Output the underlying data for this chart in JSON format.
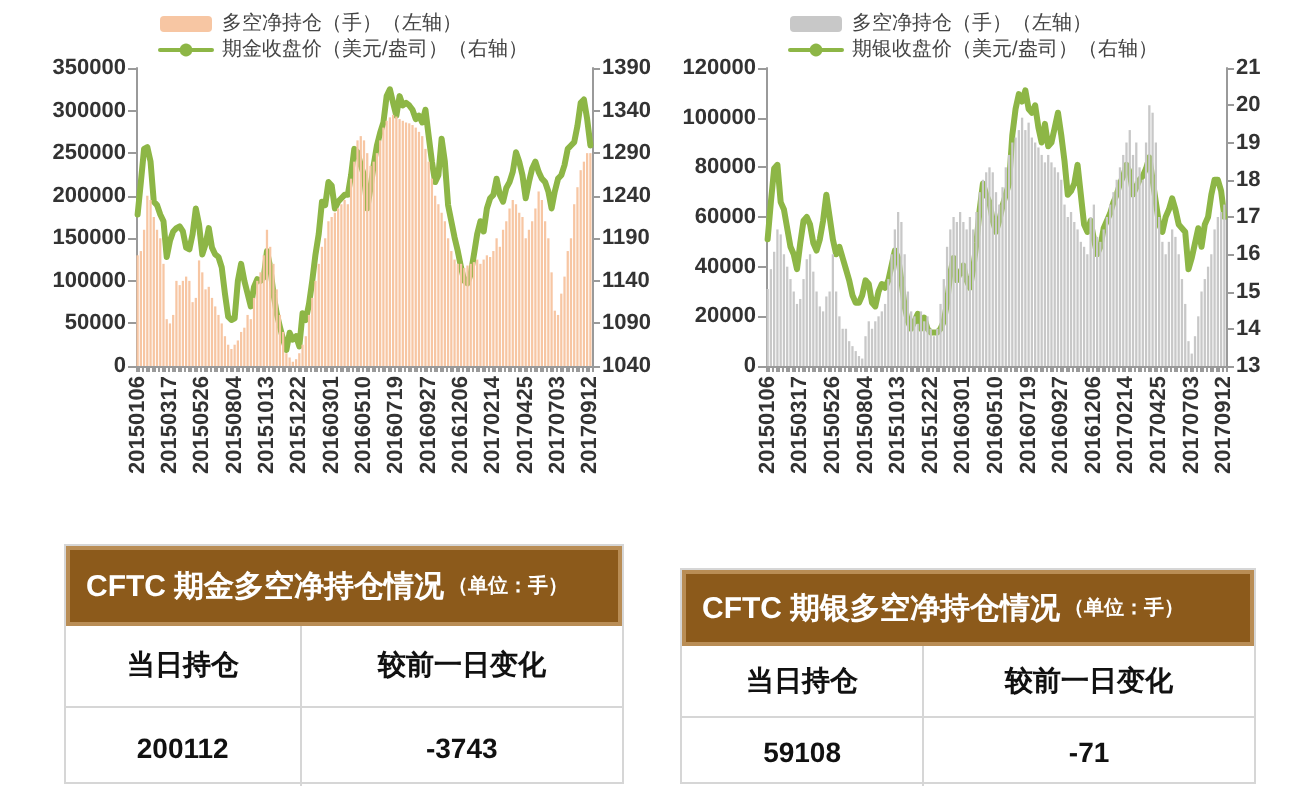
{
  "chart_data": [
    {
      "type": "bar",
      "legend": "top left",
      "categories": [
        "20150106",
        null,
        null,
        null,
        null,
        null,
        null,
        null,
        null,
        null,
        "20150317",
        null,
        null,
        null,
        null,
        null,
        null,
        null,
        null,
        null,
        "20150526",
        null,
        null,
        null,
        null,
        null,
        null,
        null,
        null,
        null,
        "20150804",
        null,
        null,
        null,
        null,
        null,
        null,
        null,
        null,
        null,
        "20151013",
        null,
        null,
        null,
        null,
        null,
        null,
        null,
        null,
        null,
        "20151222",
        null,
        null,
        null,
        null,
        null,
        null,
        null,
        null,
        null,
        "20160301",
        null,
        null,
        null,
        null,
        null,
        null,
        null,
        null,
        null,
        "20160510",
        null,
        null,
        null,
        null,
        null,
        null,
        null,
        null,
        null,
        "20160719",
        null,
        null,
        null,
        null,
        null,
        null,
        null,
        null,
        null,
        "20160927",
        null,
        null,
        null,
        null,
        null,
        null,
        null,
        null,
        null,
        "20161206",
        null,
        null,
        null,
        null,
        null,
        null,
        null,
        null,
        null,
        "20170214",
        null,
        null,
        null,
        null,
        null,
        null,
        null,
        null,
        null,
        "20170425",
        null,
        null,
        null,
        null,
        null,
        null,
        null,
        null,
        null,
        "20170703",
        null,
        null,
        null,
        null,
        null,
        null,
        null,
        null,
        null,
        "20170912"
      ],
      "series": [
        {
          "name": "多空净持仓（手）（左轴）",
          "type": "bar",
          "color": "#f7c6a3",
          "values": [
            130000,
            135000,
            160000,
            200000,
            195000,
            175000,
            160000,
            150000,
            120000,
            55000,
            50000,
            60000,
            100000,
            95000,
            100000,
            105000,
            100000,
            75000,
            80000,
            124000,
            110000,
            90000,
            93000,
            80000,
            70000,
            60000,
            50000,
            35000,
            25000,
            20000,
            25000,
            30000,
            40000,
            45000,
            60000,
            55000,
            80000,
            100000,
            110000,
            130000,
            160000,
            140000,
            120000,
            90000,
            60000,
            40000,
            15000,
            10000,
            5000,
            8000,
            15000,
            25000,
            35000,
            60000,
            80000,
            100000,
            120000,
            140000,
            150000,
            170000,
            175000,
            180000,
            185000,
            190000,
            195000,
            190000,
            220000,
            240000,
            265000,
            270000,
            265000,
            250000,
            235000,
            240000,
            250000,
            265000,
            280000,
            288000,
            292000,
            295000,
            293000,
            290000,
            288000,
            286000,
            285000,
            283000,
            280000,
            275000,
            270000,
            255000,
            240000,
            220000,
            200000,
            190000,
            180000,
            170000,
            150000,
            135000,
            125000,
            120000,
            120000,
            115000,
            118000,
            120000,
            122000,
            125000,
            120000,
            125000,
            130000,
            128000,
            135000,
            150000,
            140000,
            160000,
            170000,
            185000,
            195000,
            190000,
            180000,
            175000,
            150000,
            160000,
            170000,
            185000,
            205000,
            195000,
            170000,
            150000,
            110000,
            65000,
            60000,
            85000,
            105000,
            135000,
            150000,
            190000,
            210000,
            230000,
            240000,
            250000,
            250000
          ]
        },
        {
          "name": "期金收盘价（美元/盎司）（右轴）",
          "type": "line",
          "axis": "y2",
          "color": "#8db646",
          "values": [
            1218,
            1256,
            1295,
            1297,
            1280,
            1233,
            1229,
            1218,
            1210,
            1168,
            1187,
            1198,
            1202,
            1204,
            1198,
            1179,
            1177,
            1195,
            1225,
            1206,
            1171,
            1183,
            1202,
            1179,
            1171,
            1168,
            1156,
            1125,
            1098,
            1094,
            1096,
            1140,
            1160,
            1140,
            1125,
            1110,
            1133,
            1142,
            1140,
            1144,
            1175,
            1156,
            1125,
            1102,
            1086,
            1071,
            1059,
            1079,
            1071,
            1075,
            1063,
            1102,
            1094,
            1113,
            1140,
            1171,
            1195,
            1233,
            1229,
            1256,
            1252,
            1225,
            1233,
            1237,
            1241,
            1241,
            1264,
            1295,
            1291,
            1276,
            1264,
            1225,
            1249,
            1276,
            1299,
            1314,
            1326,
            1357,
            1365,
            1349,
            1334,
            1357,
            1346,
            1349,
            1346,
            1341,
            1330,
            1334,
            1326,
            1341,
            1310,
            1280,
            1256,
            1264,
            1307,
            1280,
            1229,
            1210,
            1191,
            1175,
            1156,
            1140,
            1137,
            1148,
            1171,
            1195,
            1210,
            1198,
            1225,
            1237,
            1241,
            1260,
            1241,
            1233,
            1249,
            1256,
            1268,
            1291,
            1280,
            1264,
            1237,
            1256,
            1272,
            1280,
            1268,
            1260,
            1256,
            1245,
            1225,
            1245,
            1260,
            1264,
            1276,
            1295,
            1299,
            1303,
            1322,
            1349,
            1353,
            1330,
            1299
          ]
        }
      ],
      "ylim": [
        0,
        350000
      ],
      "yticks": [
        0,
        50000,
        100000,
        150000,
        200000,
        250000,
        300000,
        350000
      ],
      "y2lim": [
        1040,
        1390
      ],
      "y2ticks": [
        1040,
        1090,
        1140,
        1190,
        1240,
        1290,
        1340,
        1390
      ]
    },
    {
      "type": "bar",
      "legend": "top left",
      "categories": [
        "20150106",
        null,
        null,
        null,
        null,
        null,
        null,
        null,
        null,
        null,
        "20150317",
        null,
        null,
        null,
        null,
        null,
        null,
        null,
        null,
        null,
        "20150526",
        null,
        null,
        null,
        null,
        null,
        null,
        null,
        null,
        null,
        "20150804",
        null,
        null,
        null,
        null,
        null,
        null,
        null,
        null,
        null,
        "20151013",
        null,
        null,
        null,
        null,
        null,
        null,
        null,
        null,
        null,
        "20151222",
        null,
        null,
        null,
        null,
        null,
        null,
        null,
        null,
        null,
        "20160301",
        null,
        null,
        null,
        null,
        null,
        null,
        null,
        null,
        null,
        "20160510",
        null,
        null,
        null,
        null,
        null,
        null,
        null,
        null,
        null,
        "20160719",
        null,
        null,
        null,
        null,
        null,
        null,
        null,
        null,
        null,
        "20160927",
        null,
        null,
        null,
        null,
        null,
        null,
        null,
        null,
        null,
        "20161206",
        null,
        null,
        null,
        null,
        null,
        null,
        null,
        null,
        null,
        "20170214",
        null,
        null,
        null,
        null,
        null,
        null,
        null,
        null,
        null,
        "20170425",
        null,
        null,
        null,
        null,
        null,
        null,
        null,
        null,
        null,
        "20170703",
        null,
        null,
        null,
        null,
        null,
        null,
        null,
        null,
        null,
        "20170912"
      ],
      "series": [
        {
          "name": "多空净持仓（手）（左轴）",
          "type": "bar",
          "color": "#c8c8c8",
          "values": [
            31000,
            39000,
            46000,
            55000,
            53000,
            45000,
            40000,
            35000,
            30000,
            25000,
            27000,
            35000,
            43000,
            45000,
            38000,
            30000,
            24000,
            22000,
            28000,
            30000,
            45000,
            30000,
            20000,
            15000,
            15000,
            10000,
            8000,
            6000,
            4000,
            3000,
            12000,
            18000,
            15000,
            18000,
            20000,
            22000,
            25000,
            35000,
            45000,
            55000,
            62000,
            58000,
            45000,
            30000,
            22000,
            20000,
            17000,
            22000,
            18000,
            20000,
            15000,
            12000,
            15000,
            25000,
            35000,
            48000,
            55000,
            60000,
            58000,
            62000,
            58000,
            55000,
            60000,
            55000,
            62000,
            70000,
            75000,
            78000,
            80000,
            78000,
            70000,
            65000,
            72000,
            80000,
            85000,
            90000,
            92000,
            95000,
            100000,
            95000,
            98000,
            92000,
            90000,
            88000,
            85000,
            82000,
            85000,
            82000,
            80000,
            78000,
            75000,
            65000,
            60000,
            62000,
            58000,
            55000,
            50000,
            48000,
            45000,
            60000,
            65000,
            52000,
            50000,
            55000,
            60000,
            65000,
            70000,
            75000,
            80000,
            85000,
            90000,
            95000,
            85000,
            90000,
            80000,
            75000,
            90000,
            105000,
            102000,
            90000,
            60000,
            50000,
            45000,
            50000,
            55000,
            52000,
            45000,
            35000,
            25000,
            10000,
            5000,
            12000,
            20000,
            30000,
            35000,
            40000,
            45000,
            55000,
            60000,
            62000,
            65000
          ]
        },
        {
          "name": "期银收盘价（美元/盎司）（右轴）",
          "type": "line",
          "axis": "y2",
          "color": "#8db646",
          "values": [
            16.4,
            17.4,
            18.3,
            18.4,
            17.4,
            17.2,
            16.7,
            16.2,
            16.0,
            15.6,
            16.3,
            16.9,
            17.0,
            16.8,
            16.3,
            16.1,
            16.4,
            16.9,
            17.6,
            17.0,
            16.4,
            16.0,
            16.2,
            15.9,
            15.6,
            15.3,
            14.9,
            14.7,
            14.7,
            14.9,
            15.3,
            15.2,
            14.7,
            14.6,
            15.0,
            15.2,
            15.1,
            15.3,
            15.7,
            16.1,
            15.9,
            15.3,
            14.6,
            14.2,
            14.0,
            14.2,
            14.4,
            14.0,
            14.3,
            14.0,
            13.9,
            13.9,
            13.9,
            14.0,
            14.2,
            14.7,
            15.5,
            15.9,
            15.3,
            15.5,
            15.7,
            15.3,
            15.1,
            15.6,
            16.3,
            17.2,
            17.9,
            17.6,
            17.4,
            16.9,
            16.6,
            16.9,
            17.3,
            17.6,
            17.9,
            19.2,
            19.9,
            20.3,
            20.1,
            20.4,
            19.9,
            19.8,
            20.0,
            19.4,
            19.0,
            19.5,
            18.9,
            19.0,
            19.4,
            19.8,
            19.2,
            18.5,
            17.6,
            17.7,
            17.9,
            18.4,
            17.6,
            16.8,
            16.6,
            16.9,
            16.4,
            16.0,
            16.2,
            16.7,
            16.9,
            17.1,
            17.4,
            17.6,
            17.9,
            18.1,
            18.4,
            18.2,
            17.6,
            17.8,
            18.0,
            18.1,
            18.3,
            18.6,
            18.0,
            17.4,
            16.8,
            16.6,
            17.0,
            17.2,
            17.5,
            17.2,
            16.8,
            16.7,
            16.6,
            15.6,
            15.9,
            16.3,
            16.7,
            16.2,
            16.8,
            17.0,
            17.6,
            18.0,
            18.0,
            17.7,
            17.0
          ]
        }
      ],
      "ylim": [
        0,
        120000
      ],
      "yticks": [
        0,
        20000,
        40000,
        60000,
        80000,
        100000,
        120000
      ],
      "y2lim": [
        13,
        21
      ],
      "y2ticks": [
        13,
        14,
        15,
        16,
        17,
        18,
        19,
        20,
        21
      ]
    },
    {
      "type": "other",
      "title": "CFTC 期金多空净持仓情况",
      "subtitle": "（单位：手）",
      "annotations": [
        "当日持仓",
        "较前一日变化",
        "200112",
        "-3743"
      ]
    },
    {
      "type": "other",
      "title": "CFTC 期银多空净持仓情况",
      "subtitle": "（单位：手）",
      "annotations": [
        "当日持仓",
        "较前一日变化",
        "59108",
        "-71"
      ]
    }
  ]
}
